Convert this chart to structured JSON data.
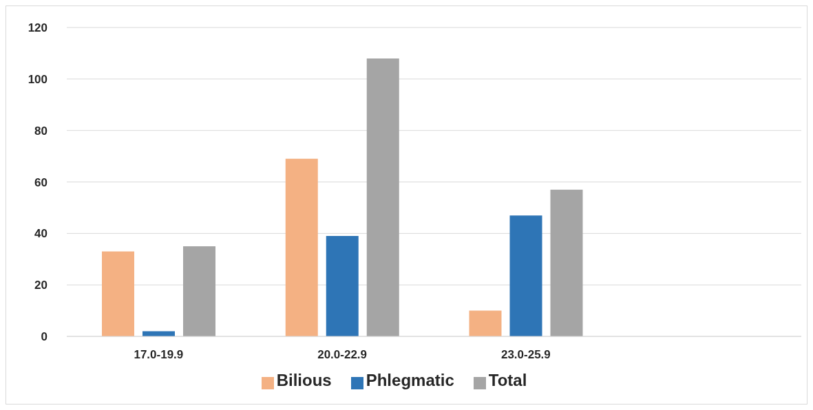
{
  "chart_data": {
    "type": "bar",
    "categories": [
      "17.0-19.9",
      "20.0-22.9",
      "23.0-25.9",
      null
    ],
    "series": [
      {
        "name": "Bilious",
        "color": "#f4b183",
        "values": [
          33,
          69,
          10,
          null
        ]
      },
      {
        "name": "Phlegmatic",
        "color": "#2e75b6",
        "values": [
          2,
          39,
          47,
          null
        ]
      },
      {
        "name": "Total",
        "color": "#a5a5a5",
        "values": [
          35,
          108,
          57,
          null
        ]
      }
    ],
    "ylim": [
      0,
      120
    ],
    "yticks": [
      0,
      20,
      40,
      60,
      80,
      100,
      120
    ],
    "grid": "y",
    "legend": "bottom"
  }
}
